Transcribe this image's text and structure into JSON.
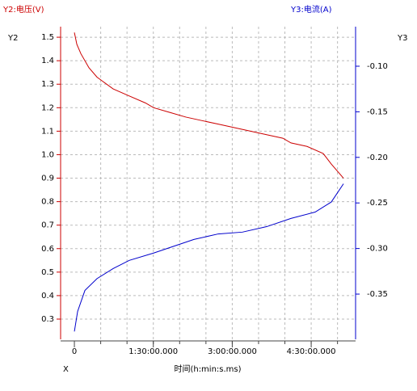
{
  "chart_data": {
    "type": "line",
    "y_label": "Y2:电压(V)",
    "y2_label": "Y3:电流(A)",
    "y_axis_name": "Y2",
    "y2_axis_name": "Y3",
    "x_axis_name": "X",
    "x_label": "时间(h:min:s.ms)",
    "xlim": [
      -15.7,
      320.6
    ],
    "xticks": [
      0,
      {
        "value": 90,
        "label": "1:30:00.000"
      },
      {
        "value": 180,
        "label": "3:00:00.000"
      },
      {
        "value": 270,
        "label": "4:30:00.000"
      }
    ],
    "x_grid": [
      30,
      60,
      90,
      120,
      150,
      180,
      210,
      240,
      270,
      300
    ],
    "ylim": [
      0.214,
      1.545
    ],
    "yticks": [
      0.3,
      0.4,
      0.5,
      0.6,
      0.7,
      0.8,
      0.9,
      {
        "value": 1,
        "label": "1.0"
      },
      1.1,
      1.2,
      1.3,
      1.4,
      1.5
    ],
    "y2lim": [
      -0.3996,
      -0.0566
    ],
    "y2ticks": [
      {
        "value": -0.35,
        "label": "-0.35"
      },
      {
        "value": -0.3,
        "label": "-0.30"
      },
      {
        "value": -0.25,
        "label": "-0.25"
      },
      {
        "value": -0.2,
        "label": "-0.20"
      },
      {
        "value": -0.15,
        "label": "-0.15"
      },
      {
        "value": -0.1,
        "label": "-0.10"
      }
    ],
    "grid": true,
    "series": [
      {
        "name": "电压",
        "color": "#cc0000",
        "x": [
          0,
          2.8,
          7.4,
          16.6,
          25.8,
          44.2,
          62.6,
          81.1,
          90.3,
          108.7,
          127.1,
          145.5,
          164,
          182.4,
          200.8,
          219.2,
          237.7,
          246.9,
          265.3,
          283.7,
          292.9,
          306.8
        ],
        "values": [
          1.52,
          1.47,
          1.43,
          1.37,
          1.33,
          1.28,
          1.25,
          1.22,
          1.2,
          1.18,
          1.16,
          1.145,
          1.13,
          1.115,
          1.1,
          1.085,
          1.07,
          1.05,
          1.035,
          1.005,
          0.96,
          0.9
        ]
      },
      {
        "name": "电流",
        "color": "#0000cc",
        "axis": "y2",
        "x": [
          0,
          3.7,
          12,
          25.8,
          44.2,
          62.6,
          90.3,
          108.7,
          136.3,
          164,
          191.6,
          219.2,
          246.9,
          274.5,
          292.9,
          306.8
        ],
        "values": [
          -0.391,
          -0.369,
          -0.346,
          -0.333,
          -0.322,
          -0.313,
          -0.305,
          -0.299,
          -0.29,
          -0.284,
          -0.282,
          -0.276,
          -0.267,
          -0.26,
          -0.249,
          -0.229
        ]
      }
    ]
  }
}
